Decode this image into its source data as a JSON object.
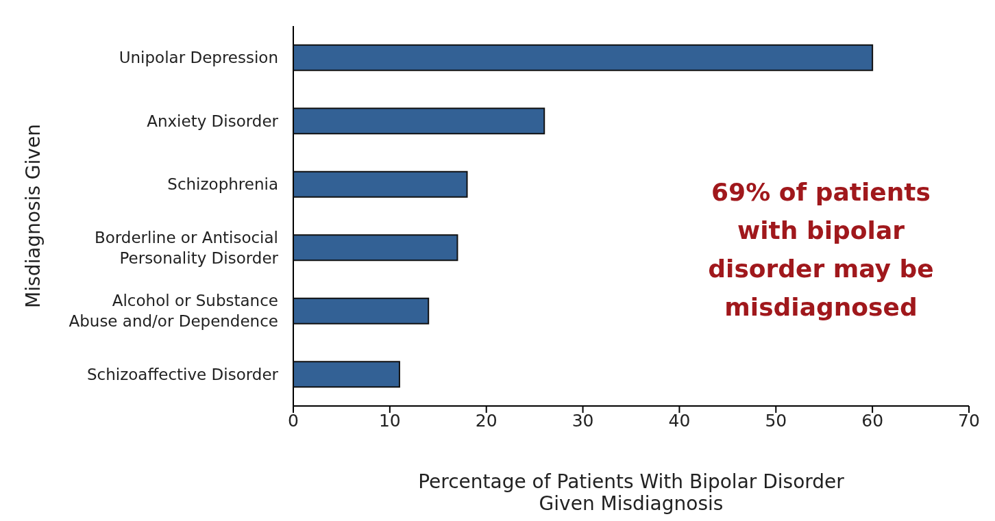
{
  "chart_data": {
    "type": "bar",
    "orientation": "horizontal",
    "xlabel": "Percentage of Patients With Bipolar Disorder Given Misdiagnosis",
    "ylabel": "Misdiagnosis Given",
    "categories": [
      "Unipolar Depression",
      "Anxiety Disorder",
      "Schizophrenia",
      "Borderline or Antisocial Personality Disorder",
      "Alcohol or Substance Abuse and/or Dependence",
      "Schizoaffective Disorder"
    ],
    "values": [
      60,
      26,
      18,
      17,
      14,
      11
    ],
    "color": "#336195",
    "xlim": [
      0,
      70
    ],
    "xticks": [
      0,
      10,
      20,
      30,
      40,
      50,
      60,
      70
    ],
    "grid": false,
    "annotations": [
      "69% of patients with bipolar disorder may be misdiagnosed"
    ]
  }
}
